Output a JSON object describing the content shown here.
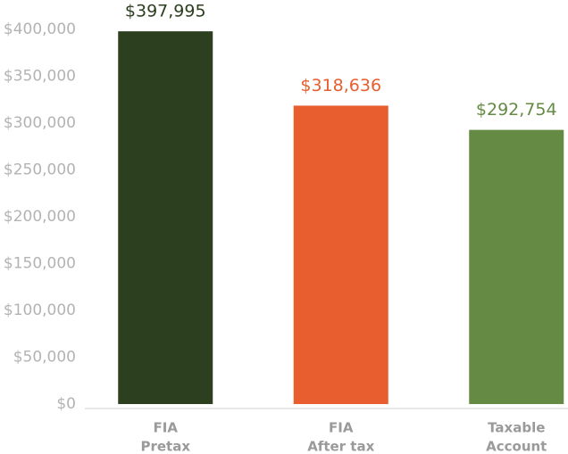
{
  "chart_data": {
    "type": "bar",
    "categories": [
      [
        "FIA",
        "Pretax"
      ],
      [
        "FIA",
        "After tax"
      ],
      [
        "Taxable",
        "Account"
      ]
    ],
    "values": [
      397995,
      318636,
      292754
    ],
    "value_labels": [
      "$397,995",
      "$318,636",
      "$292,754"
    ],
    "colors": [
      "#2c3f1f",
      "#e85e2f",
      "#648a44"
    ],
    "ylim": [
      0,
      400000
    ],
    "yticks": [
      {
        "value": 0,
        "label": "$0"
      },
      {
        "value": 50000,
        "label": "$50,000"
      },
      {
        "value": 100000,
        "label": "$100,000"
      },
      {
        "value": 150000,
        "label": "$150,000"
      },
      {
        "value": 200000,
        "label": "$200,000"
      },
      {
        "value": 250000,
        "label": "$250,000"
      },
      {
        "value": 300000,
        "label": "$300,000"
      },
      {
        "value": 350000,
        "label": "$350,000"
      },
      {
        "value": 400000,
        "label": "$400,000"
      }
    ],
    "grid": false
  }
}
